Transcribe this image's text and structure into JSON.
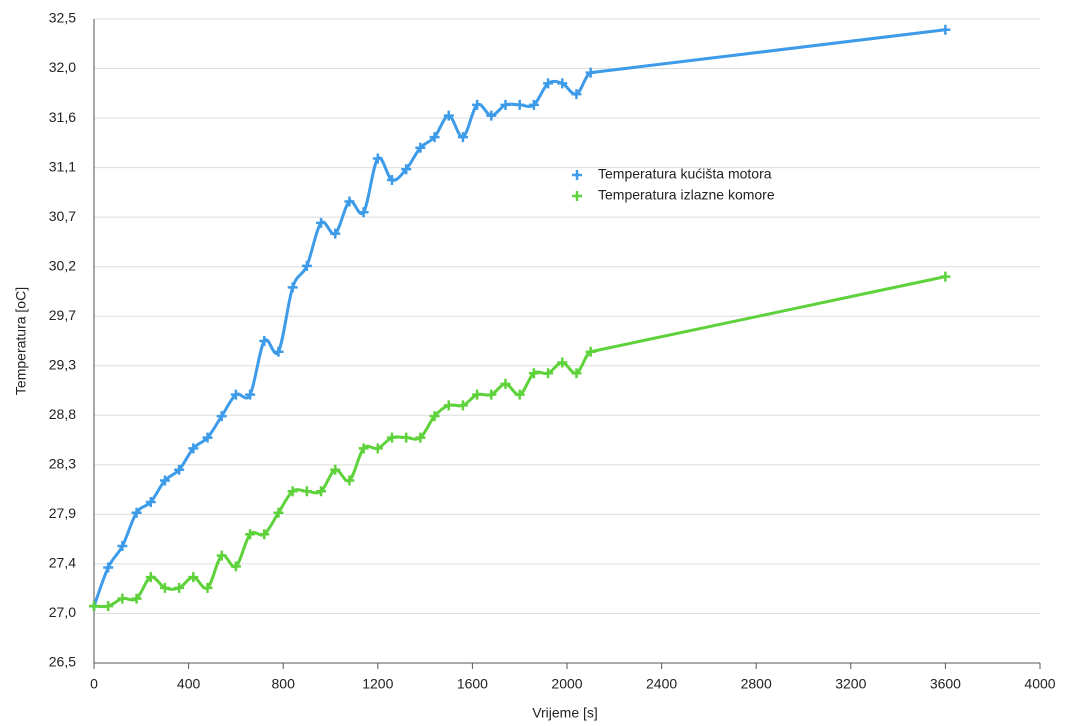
{
  "chart_data": {
    "type": "line",
    "xlabel": "Vrijeme [s]",
    "ylabel": "Temperatura [oC]",
    "x": [
      0,
      60,
      120,
      180,
      240,
      300,
      360,
      420,
      480,
      540,
      600,
      660,
      720,
      780,
      840,
      900,
      960,
      1020,
      1080,
      1140,
      1200,
      1260,
      1320,
      1380,
      1440,
      1500,
      1560,
      1620,
      1680,
      1740,
      1800,
      1860,
      1920,
      1980,
      2040,
      2100,
      3600
    ],
    "series": [
      {
        "name": "Temperatura kućišta motora",
        "color": "#3d9be9",
        "values": [
          27.03,
          27.39,
          27.59,
          27.9,
          28.0,
          28.2,
          28.3,
          28.5,
          28.6,
          28.8,
          29.0,
          29.0,
          29.5,
          29.4,
          30.0,
          30.2,
          30.6,
          30.5,
          30.8,
          30.7,
          31.2,
          31.0,
          31.1,
          31.3,
          31.4,
          31.6,
          31.4,
          31.7,
          31.6,
          31.7,
          31.7,
          31.7,
          31.9,
          31.9,
          31.8,
          32.0,
          32.4
        ]
      },
      {
        "name": "Temperatura izlazne komore",
        "color": "#5dd23a",
        "values": [
          27.03,
          27.03,
          27.1,
          27.1,
          27.3,
          27.2,
          27.2,
          27.3,
          27.2,
          27.5,
          27.4,
          27.7,
          27.7,
          27.9,
          28.1,
          28.1,
          28.1,
          28.3,
          28.2,
          28.5,
          28.5,
          28.6,
          28.6,
          28.6,
          28.8,
          28.9,
          28.9,
          29.0,
          29.0,
          29.1,
          29.0,
          29.2,
          29.2,
          29.3,
          29.2,
          29.4,
          30.1
        ]
      }
    ],
    "xlim": [
      0,
      4000
    ],
    "xticks": [
      0,
      400,
      800,
      1200,
      1600,
      2000,
      2400,
      2800,
      3200,
      3600,
      4000
    ],
    "ylim": [
      26.5,
      32.5
    ],
    "yticks": [
      {
        "value": 26.5,
        "label": "26,5"
      },
      {
        "value": 26.9615,
        "label": "27,0"
      },
      {
        "value": 27.4231,
        "label": "27,4"
      },
      {
        "value": 27.8846,
        "label": "27,9"
      },
      {
        "value": 28.3462,
        "label": "28,3"
      },
      {
        "value": 28.8077,
        "label": "28,8"
      },
      {
        "value": 29.2692,
        "label": "29,3"
      },
      {
        "value": 29.7308,
        "label": "29,7"
      },
      {
        "value": 30.1923,
        "label": "30,2"
      },
      {
        "value": 30.6538,
        "label": "30,7"
      },
      {
        "value": 31.1154,
        "label": "31,1"
      },
      {
        "value": 31.5769,
        "label": "31,6"
      },
      {
        "value": 32.0385,
        "label": "32,0"
      },
      {
        "value": 32.5,
        "label": "32,5"
      }
    ],
    "grid": true
  }
}
